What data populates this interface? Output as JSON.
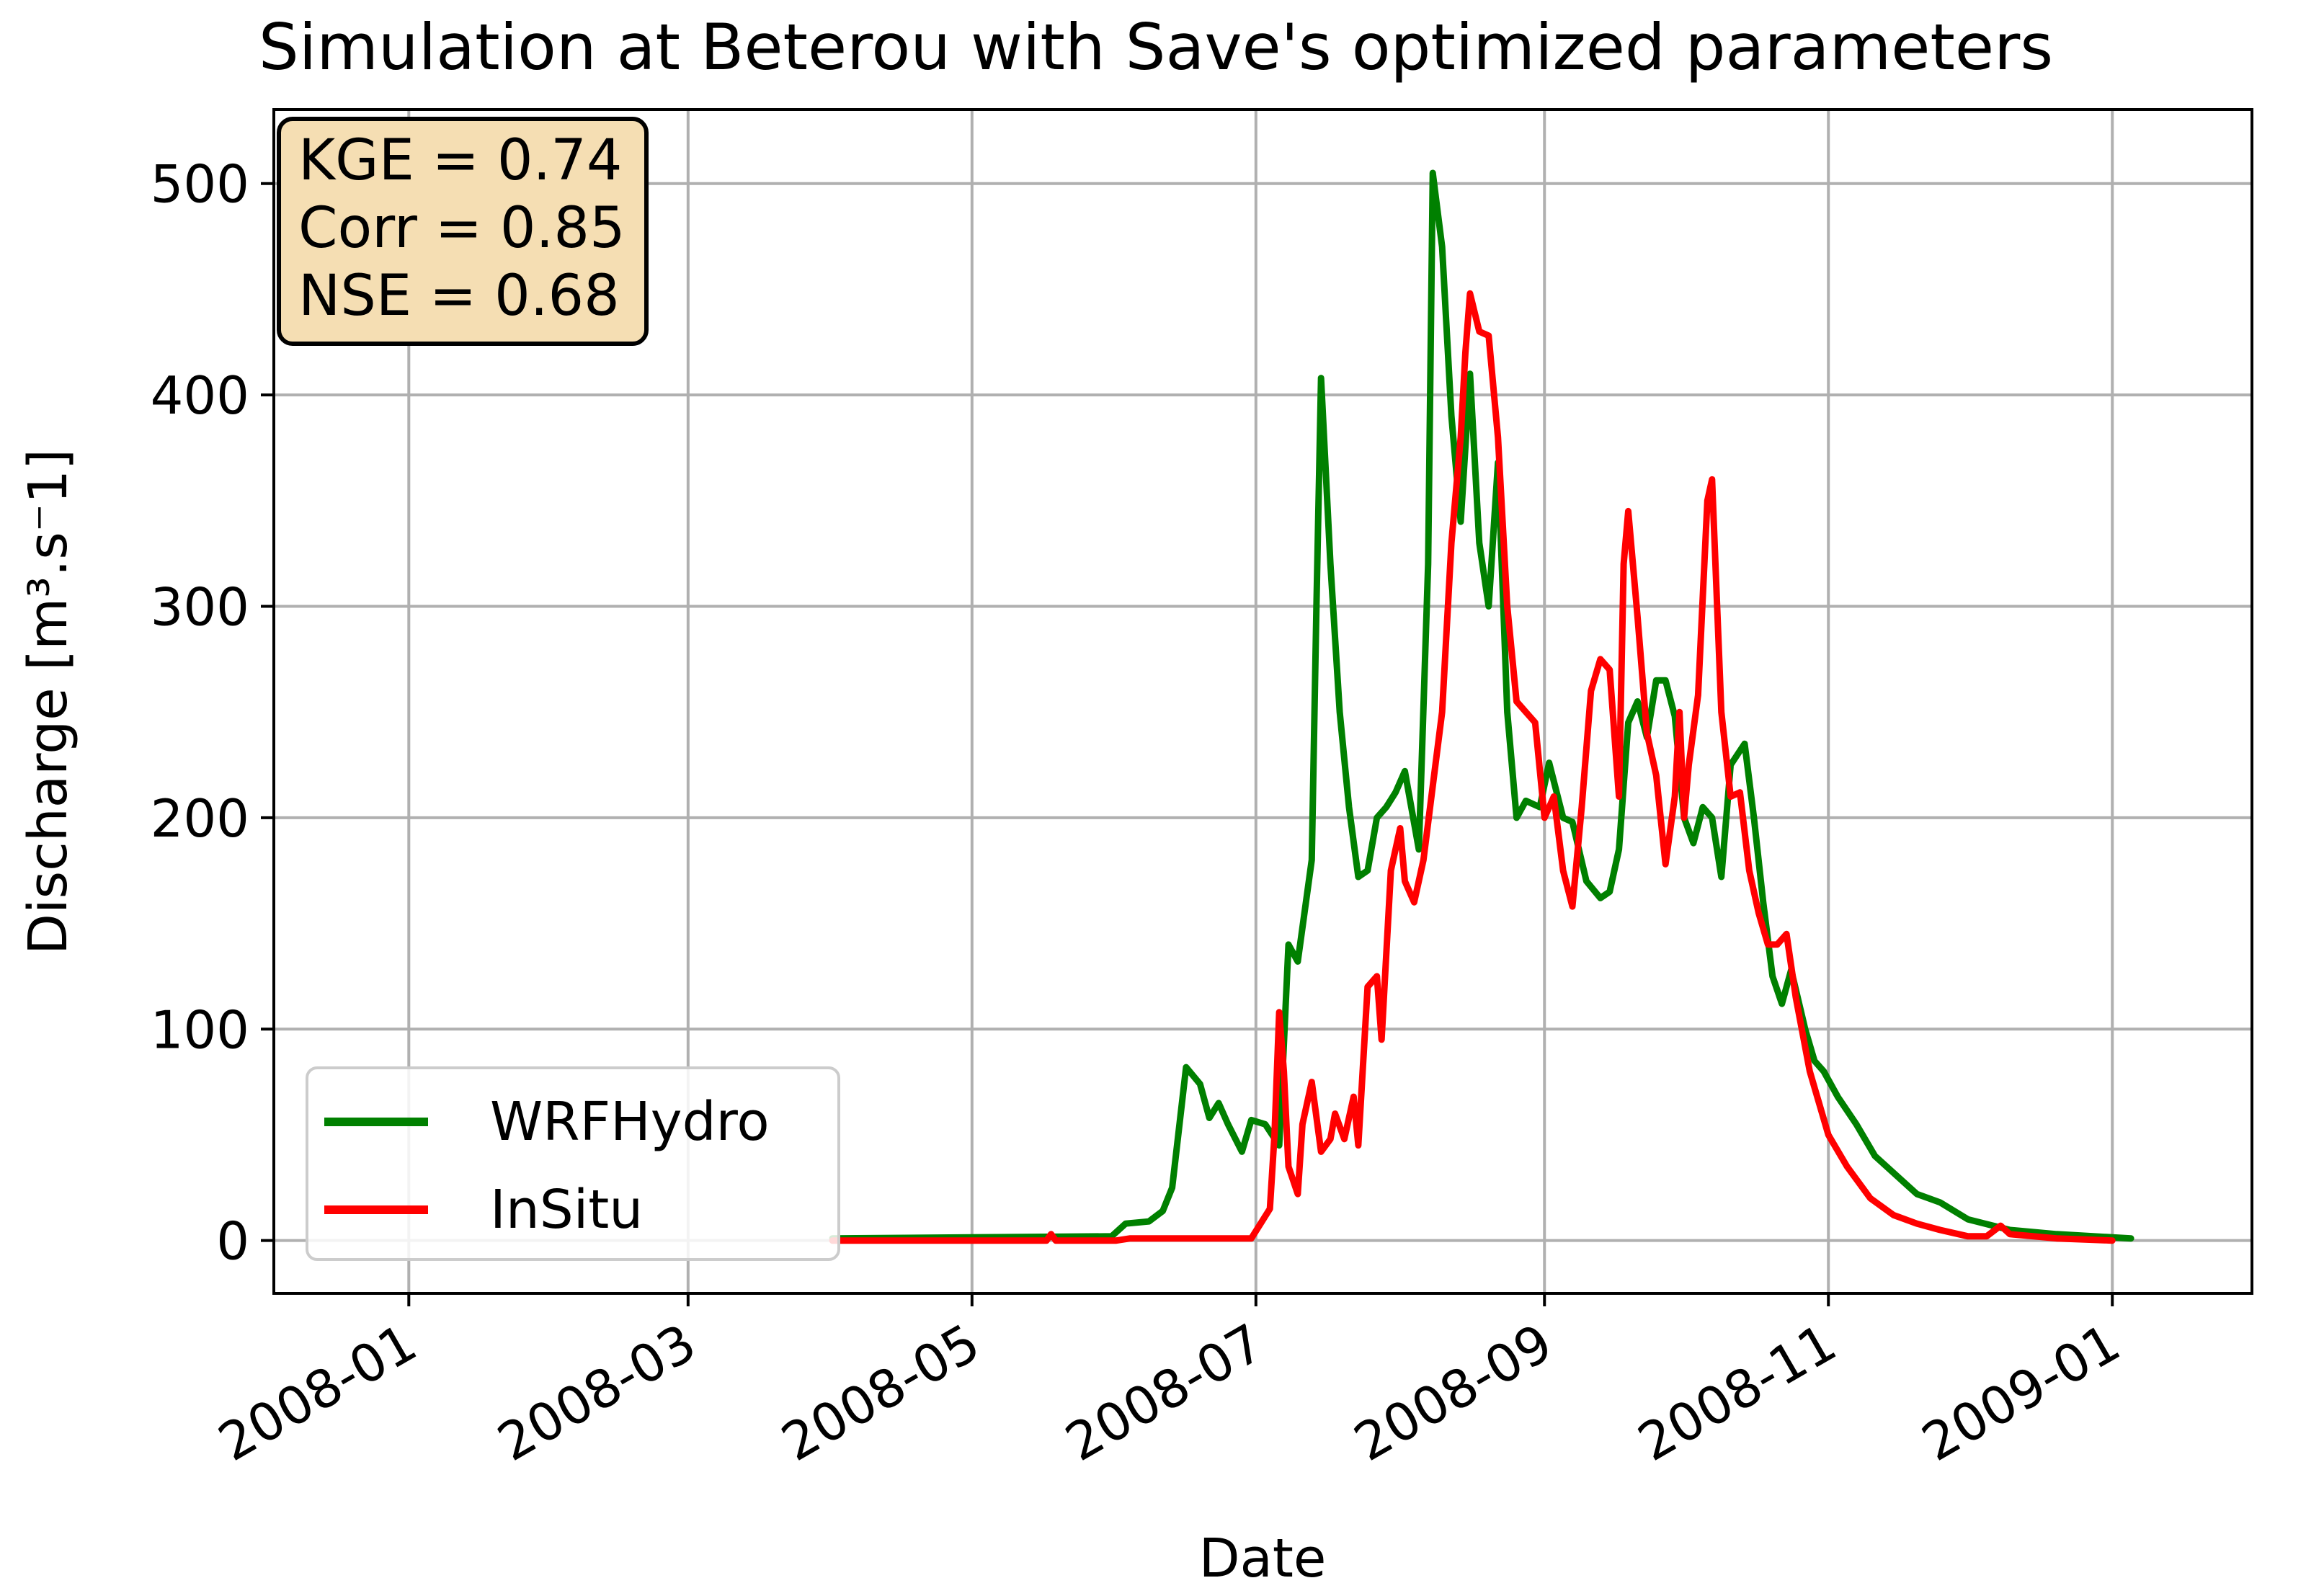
{
  "chart_data": {
    "type": "line",
    "title": "Simulation at Beterou with Save's optimized parameters",
    "xlabel": "Date",
    "ylabel": "Discharge [m³.s⁻1]",
    "xlim": [
      "2007-12-03",
      "2009-01-31"
    ],
    "ylim": [
      -25,
      535
    ],
    "x_ticks": [
      "2008-01",
      "2008-03",
      "2008-05",
      "2008-07",
      "2008-09",
      "2008-11",
      "2009-01"
    ],
    "y_ticks": [
      0,
      100,
      200,
      300,
      400,
      500
    ],
    "grid": true,
    "legend_position": "lower-left",
    "stats": [
      "KGE = 0.74",
      "Corr = 0.85",
      "NSE = 0.68"
    ],
    "series": [
      {
        "name": "WRFHydro",
        "color": "#008000",
        "points": [
          [
            "2008-04-01",
            1
          ],
          [
            "2008-05-01",
            1.5
          ],
          [
            "2008-05-31",
            2
          ],
          [
            "2008-06-03",
            8
          ],
          [
            "2008-06-08",
            9
          ],
          [
            "2008-06-11",
            14
          ],
          [
            "2008-06-13",
            25
          ],
          [
            "2008-06-16",
            82
          ],
          [
            "2008-06-19",
            74
          ],
          [
            "2008-06-21",
            58
          ],
          [
            "2008-06-23",
            65
          ],
          [
            "2008-06-25",
            55
          ],
          [
            "2008-06-28",
            42
          ],
          [
            "2008-06-30",
            57
          ],
          [
            "2008-07-03",
            55
          ],
          [
            "2008-07-06",
            45
          ],
          [
            "2008-07-08",
            140
          ],
          [
            "2008-07-10",
            132
          ],
          [
            "2008-07-13",
            180
          ],
          [
            "2008-07-14",
            300
          ],
          [
            "2008-07-15",
            408
          ],
          [
            "2008-07-17",
            320
          ],
          [
            "2008-07-19",
            250
          ],
          [
            "2008-07-21",
            205
          ],
          [
            "2008-07-23",
            172
          ],
          [
            "2008-07-25",
            175
          ],
          [
            "2008-07-27",
            200
          ],
          [
            "2008-07-29",
            205
          ],
          [
            "2008-07-31",
            212
          ],
          [
            "2008-08-02",
            222
          ],
          [
            "2008-08-05",
            185
          ],
          [
            "2008-08-07",
            320
          ],
          [
            "2008-08-08",
            505
          ],
          [
            "2008-08-10",
            470
          ],
          [
            "2008-08-12",
            390
          ],
          [
            "2008-08-14",
            340
          ],
          [
            "2008-08-16",
            410
          ],
          [
            "2008-08-18",
            330
          ],
          [
            "2008-08-20",
            300
          ],
          [
            "2008-08-22",
            368
          ],
          [
            "2008-08-24",
            250
          ],
          [
            "2008-08-26",
            200
          ],
          [
            "2008-08-28",
            208
          ],
          [
            "2008-08-31",
            205
          ],
          [
            "2008-09-02",
            226
          ],
          [
            "2008-09-05",
            200
          ],
          [
            "2008-09-07",
            198
          ],
          [
            "2008-09-10",
            170
          ],
          [
            "2008-09-13",
            162
          ],
          [
            "2008-09-15",
            165
          ],
          [
            "2008-09-17",
            185
          ],
          [
            "2008-09-19",
            245
          ],
          [
            "2008-09-21",
            255
          ],
          [
            "2008-09-23",
            238
          ],
          [
            "2008-09-25",
            265
          ],
          [
            "2008-09-27",
            265
          ],
          [
            "2008-09-29",
            248
          ],
          [
            "2008-10-01",
            200
          ],
          [
            "2008-10-03",
            188
          ],
          [
            "2008-10-05",
            205
          ],
          [
            "2008-10-07",
            200
          ],
          [
            "2008-10-09",
            172
          ],
          [
            "2008-10-11",
            225
          ],
          [
            "2008-10-14",
            235
          ],
          [
            "2008-10-16",
            200
          ],
          [
            "2008-10-18",
            160
          ],
          [
            "2008-10-20",
            125
          ],
          [
            "2008-10-22",
            112
          ],
          [
            "2008-10-24",
            128
          ],
          [
            "2008-10-27",
            100
          ],
          [
            "2008-10-29",
            85
          ],
          [
            "2008-10-31",
            80
          ],
          [
            "2008-11-03",
            68
          ],
          [
            "2008-11-07",
            55
          ],
          [
            "2008-11-11",
            40
          ],
          [
            "2008-11-15",
            32
          ],
          [
            "2008-11-20",
            22
          ],
          [
            "2008-11-25",
            18
          ],
          [
            "2008-12-01",
            10
          ],
          [
            "2008-12-10",
            5
          ],
          [
            "2008-12-20",
            3
          ],
          [
            "2009-01-05",
            1
          ]
        ]
      },
      {
        "name": "InSitu",
        "color": "#ff0000",
        "points": [
          [
            "2008-04-01",
            0
          ],
          [
            "2008-05-17",
            0
          ],
          [
            "2008-05-18",
            3
          ],
          [
            "2008-05-19",
            0
          ],
          [
            "2008-06-01",
            0
          ],
          [
            "2008-06-04",
            1
          ],
          [
            "2008-06-30",
            1
          ],
          [
            "2008-07-02",
            8
          ],
          [
            "2008-07-04",
            15
          ],
          [
            "2008-07-05",
            50
          ],
          [
            "2008-07-06",
            108
          ],
          [
            "2008-07-07",
            80
          ],
          [
            "2008-07-08",
            35
          ],
          [
            "2008-07-10",
            22
          ],
          [
            "2008-07-11",
            55
          ],
          [
            "2008-07-13",
            75
          ],
          [
            "2008-07-15",
            42
          ],
          [
            "2008-07-17",
            48
          ],
          [
            "2008-07-18",
            60
          ],
          [
            "2008-07-20",
            48
          ],
          [
            "2008-07-22",
            68
          ],
          [
            "2008-07-23",
            45
          ],
          [
            "2008-07-25",
            120
          ],
          [
            "2008-07-27",
            125
          ],
          [
            "2008-07-28",
            95
          ],
          [
            "2008-07-30",
            175
          ],
          [
            "2008-08-01",
            195
          ],
          [
            "2008-08-02",
            170
          ],
          [
            "2008-08-04",
            160
          ],
          [
            "2008-08-06",
            180
          ],
          [
            "2008-08-08",
            215
          ],
          [
            "2008-08-10",
            250
          ],
          [
            "2008-08-12",
            330
          ],
          [
            "2008-08-14",
            380
          ],
          [
            "2008-08-15",
            420
          ],
          [
            "2008-08-16",
            448
          ],
          [
            "2008-08-18",
            430
          ],
          [
            "2008-08-20",
            428
          ],
          [
            "2008-08-22",
            380
          ],
          [
            "2008-08-24",
            300
          ],
          [
            "2008-08-26",
            255
          ],
          [
            "2008-08-28",
            250
          ],
          [
            "2008-08-30",
            245
          ],
          [
            "2008-09-01",
            200
          ],
          [
            "2008-09-03",
            210
          ],
          [
            "2008-09-05",
            175
          ],
          [
            "2008-09-07",
            158
          ],
          [
            "2008-09-09",
            205
          ],
          [
            "2008-09-11",
            260
          ],
          [
            "2008-09-13",
            275
          ],
          [
            "2008-09-15",
            270
          ],
          [
            "2008-09-17",
            210
          ],
          [
            "2008-09-18",
            320
          ],
          [
            "2008-09-19",
            345
          ],
          [
            "2008-09-21",
            295
          ],
          [
            "2008-09-23",
            240
          ],
          [
            "2008-09-25",
            220
          ],
          [
            "2008-09-27",
            178
          ],
          [
            "2008-09-29",
            210
          ],
          [
            "2008-09-30",
            250
          ],
          [
            "2008-10-01",
            200
          ],
          [
            "2008-10-02",
            225
          ],
          [
            "2008-10-04",
            258
          ],
          [
            "2008-10-06",
            350
          ],
          [
            "2008-10-07",
            360
          ],
          [
            "2008-10-09",
            250
          ],
          [
            "2008-10-11",
            210
          ],
          [
            "2008-10-13",
            212
          ],
          [
            "2008-10-15",
            175
          ],
          [
            "2008-10-17",
            155
          ],
          [
            "2008-10-19",
            140
          ],
          [
            "2008-10-21",
            140
          ],
          [
            "2008-10-23",
            145
          ],
          [
            "2008-10-25",
            115
          ],
          [
            "2008-10-28",
            80
          ],
          [
            "2008-11-01",
            50
          ],
          [
            "2008-11-05",
            35
          ],
          [
            "2008-11-10",
            20
          ],
          [
            "2008-11-15",
            12
          ],
          [
            "2008-11-20",
            8
          ],
          [
            "2008-11-25",
            5
          ],
          [
            "2008-12-01",
            2
          ],
          [
            "2008-12-05",
            2
          ],
          [
            "2008-12-08",
            7
          ],
          [
            "2008-12-10",
            3
          ],
          [
            "2008-12-20",
            1
          ],
          [
            "2009-01-01",
            0
          ]
        ]
      }
    ]
  }
}
